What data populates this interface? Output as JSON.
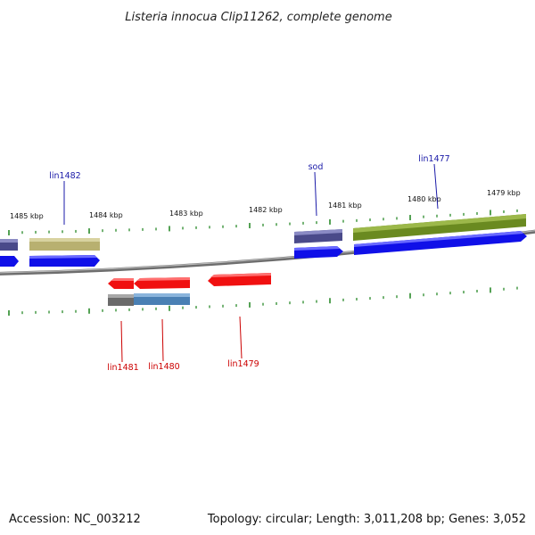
{
  "title": "Listeria innocua Clip11262, complete genome",
  "footer": {
    "accession": "Accession: NC_003212",
    "topology": "Topology: circular; Length: 3,011,208 bp; Genes: 3,052"
  },
  "colors": {
    "backbone": "#8a8a8a",
    "tick": "#2a8a2a",
    "forward_label": "#1a1aa8",
    "reverse_label": "#cc0000",
    "blue_gene": "#1010e8",
    "red_gene": "#f01010"
  },
  "kbp_labels": [
    "1485 kbp",
    "1484 kbp",
    "1483 kbp",
    "1482 kbp",
    "1481 kbp",
    "1480 kbp",
    "1479 kbp"
  ],
  "gene_labels": {
    "forward": [
      "lin1482",
      "sod",
      "lin1477"
    ],
    "reverse": [
      "lin1481",
      "lin1480",
      "lin1479"
    ]
  }
}
